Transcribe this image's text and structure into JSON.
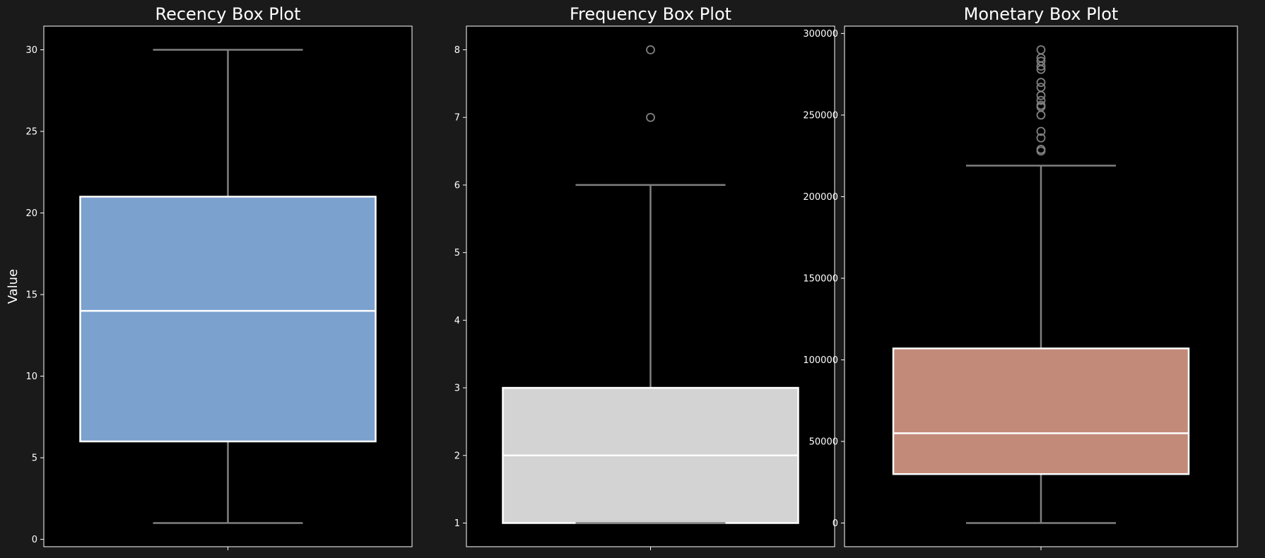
{
  "chart_data": [
    {
      "type": "box",
      "title": "Recency Box Plot",
      "ylabel": "Value",
      "xlabel": "",
      "ylim": [
        -0.45,
        31.45
      ],
      "yticks": [
        0,
        5,
        10,
        15,
        20,
        25,
        30
      ],
      "box_color": "#7ba1cf",
      "stats": {
        "whislo": 1,
        "q1": 6,
        "median": 14,
        "q3": 21,
        "whishi": 30
      },
      "outliers": []
    },
    {
      "type": "box",
      "title": "Frequency Box Plot",
      "ylabel": "",
      "xlabel": "",
      "ylim": [
        0.65,
        8.35
      ],
      "yticks": [
        1,
        2,
        3,
        4,
        5,
        6,
        7,
        8
      ],
      "box_color": "#d3d3d3",
      "stats": {
        "whislo": 1,
        "q1": 1,
        "median": 2,
        "q3": 3,
        "whishi": 6
      },
      "outliers": [
        7,
        8
      ]
    },
    {
      "type": "box",
      "title": "Monetary Box Plot",
      "ylabel": "",
      "xlabel": "",
      "ylim": [
        -14500,
        304500
      ],
      "yticks": [
        0,
        50000,
        100000,
        150000,
        200000,
        250000,
        300000
      ],
      "box_color": "#c28a78",
      "stats": {
        "whislo": 0,
        "q1": 30000,
        "median": 55000,
        "q3": 107000,
        "whishi": 219000
      },
      "outliers": [
        228000,
        229000,
        236000,
        240000,
        250000,
        255000,
        256000,
        259000,
        262000,
        267000,
        270000,
        278000,
        280000,
        283000,
        285000,
        290000
      ]
    }
  ]
}
